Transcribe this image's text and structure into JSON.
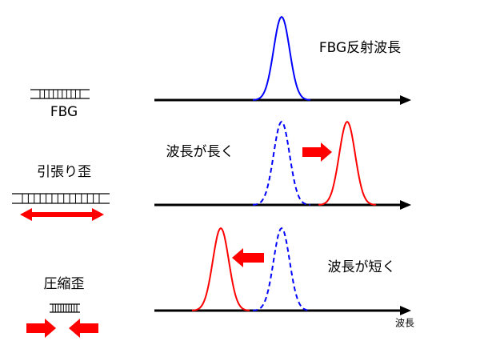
{
  "diagram": {
    "peak_label": "FBG反射波長",
    "fbg_label": "FBG",
    "longer_label": "波長が長く",
    "tension_label": "引張り歪",
    "shorter_label": "波長が短く",
    "compression_label": "圧縮歪",
    "axis_label": "波長"
  }
}
